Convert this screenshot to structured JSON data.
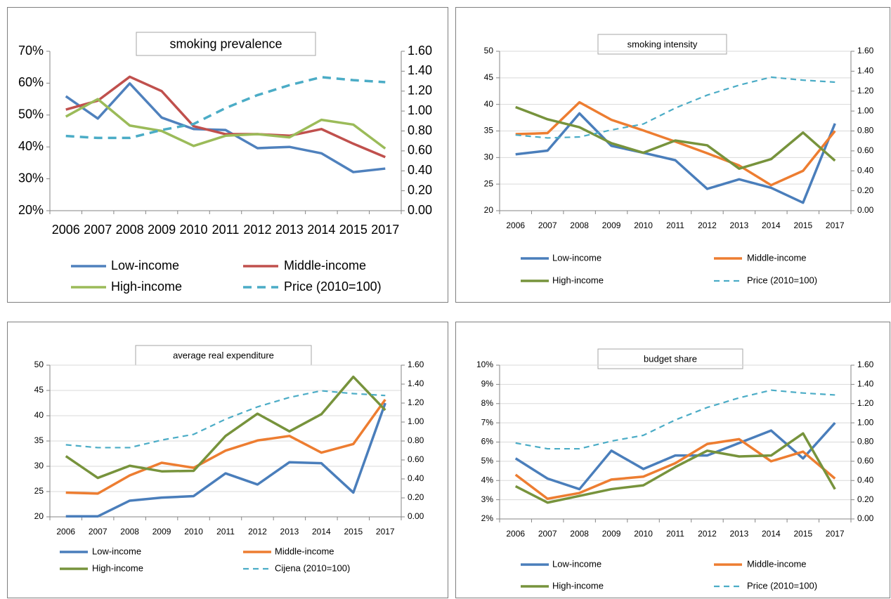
{
  "chart_data": [
    {
      "type": "line",
      "title": "smoking prevalence",
      "grid": false,
      "categories": [
        "2006",
        "2007",
        "2008",
        "2009",
        "2010",
        "2011",
        "2012",
        "2013",
        "2014",
        "2015",
        "2017"
      ],
      "ylim": [
        20,
        70
      ],
      "yticks": [
        {
          "value": 20,
          "label": "20%"
        },
        {
          "value": 30,
          "label": "30%"
        },
        {
          "value": 40,
          "label": "40%"
        },
        {
          "value": 50,
          "label": "50%"
        },
        {
          "value": 60,
          "label": "60%"
        },
        {
          "value": 70,
          "label": "70%"
        }
      ],
      "y2lim": [
        0,
        1.6
      ],
      "y2ticks": [
        {
          "value": 0,
          "label": "0.00"
        },
        {
          "value": 0.2,
          "label": "0.20"
        },
        {
          "value": 0.4,
          "label": "0.40"
        },
        {
          "value": 0.6,
          "label": "0.60"
        },
        {
          "value": 0.8,
          "label": "0.80"
        },
        {
          "value": 1,
          "label": "1.00"
        },
        {
          "value": 1.2,
          "label": "1.20"
        },
        {
          "value": 1.4,
          "label": "1.40"
        },
        {
          "value": 1.6,
          "label": "1.60"
        }
      ],
      "series": [
        {
          "name": "Low-income",
          "color": "#4f81bd",
          "values": [
            55.9,
            48.9,
            59.9,
            49.2,
            45.6,
            45.3,
            39.6,
            40,
            38,
            32.1,
            33.2
          ]
        },
        {
          "name": "Middle-income",
          "color": "#c0504d",
          "values": [
            51.7,
            54.5,
            62,
            57.5,
            46.5,
            44,
            44,
            43.5,
            45.6,
            41,
            36.8
          ]
        },
        {
          "name": "High-income",
          "color": "#9bbb59",
          "values": [
            49.5,
            55,
            46.7,
            45,
            40.3,
            43.5,
            44,
            43,
            48.5,
            47,
            39.5
          ]
        },
        {
          "name": "Price (2010=100)",
          "color": "#4bacc6",
          "axis": "y2",
          "line_style": "dashed",
          "values": [
            0.75,
            0.73,
            0.73,
            0.81,
            0.87,
            1.03,
            1.16,
            1.26,
            1.34,
            1.31,
            1.29
          ]
        }
      ]
    },
    {
      "type": "line",
      "title": "smoking intensity",
      "grid": true,
      "categories": [
        "2006",
        "2007",
        "2008",
        "2009",
        "2010",
        "2011",
        "2012",
        "2013",
        "2014",
        "2015",
        "2017"
      ],
      "ylim": [
        20,
        50
      ],
      "yticks": [
        20,
        25,
        30,
        35,
        40,
        45,
        50
      ],
      "y2lim": [
        0,
        1.6
      ],
      "y2ticks": [
        {
          "value": 0,
          "label": "0.00"
        },
        {
          "value": 0.2,
          "label": "0.20"
        },
        {
          "value": 0.4,
          "label": "0.40"
        },
        {
          "value": 0.6,
          "label": "0.60"
        },
        {
          "value": 0.8,
          "label": "0.80"
        },
        {
          "value": 1,
          "label": "1.00"
        },
        {
          "value": 1.2,
          "label": "1.20"
        },
        {
          "value": 1.4,
          "label": "1.40"
        },
        {
          "value": 1.6,
          "label": "1.60"
        }
      ],
      "series": [
        {
          "name": "Low-income",
          "color": "#4a7ebb",
          "values": [
            30.6,
            31.3,
            38.3,
            32.2,
            30.9,
            29.5,
            24.1,
            25.9,
            24.3,
            21.5,
            36.4
          ]
        },
        {
          "name": "Middle-income",
          "color": "#ed7d31",
          "values": [
            34.4,
            34.6,
            40.4,
            37.1,
            35.1,
            33,
            30.8,
            28.5,
            24.8,
            27.5,
            35
          ]
        },
        {
          "name": "High-income",
          "color": "#77933c",
          "values": [
            39.5,
            37.2,
            35.7,
            32.7,
            30.9,
            33.2,
            32.3,
            27.9,
            29.7,
            34.7,
            29.4
          ]
        },
        {
          "name": "Price (2010=100)",
          "color": "#4bacc6",
          "axis": "y2",
          "line_style": "dashed",
          "values": [
            0.76,
            0.73,
            0.74,
            0.81,
            0.87,
            1.03,
            1.16,
            1.26,
            1.34,
            1.31,
            1.29
          ]
        }
      ]
    },
    {
      "type": "line",
      "title": "average real expenditure",
      "grid": true,
      "categories": [
        "2006",
        "2007",
        "2008",
        "2009",
        "2010",
        "2011",
        "2012",
        "2013",
        "2014",
        "2015",
        "2017"
      ],
      "ylim": [
        20,
        50
      ],
      "yticks": [
        20,
        25,
        30,
        35,
        40,
        45,
        50
      ],
      "y2lim": [
        0,
        1.6
      ],
      "y2ticks": [
        {
          "value": 0,
          "label": "0.00"
        },
        {
          "value": 0.2,
          "label": "0.20"
        },
        {
          "value": 0.4,
          "label": "0.40"
        },
        {
          "value": 0.6,
          "label": "0.60"
        },
        {
          "value": 0.8,
          "label": "0.80"
        },
        {
          "value": 1,
          "label": "1.00"
        },
        {
          "value": 1.2,
          "label": "1.20"
        },
        {
          "value": 1.4,
          "label": "1.40"
        },
        {
          "value": 1.6,
          "label": "1.60"
        }
      ],
      "series": [
        {
          "name": "Low-income",
          "color": "#4a7ebb",
          "values": [
            20.1,
            20.1,
            23.2,
            23.8,
            24.1,
            28.6,
            26.4,
            30.8,
            30.6,
            24.8,
            42.5
          ]
        },
        {
          "name": "Middle-income",
          "color": "#ed7d31",
          "values": [
            24.8,
            24.6,
            28.2,
            30.7,
            29.7,
            33.1,
            35.1,
            36,
            32.7,
            34.4,
            43.2
          ]
        },
        {
          "name": "High-income",
          "color": "#77933c",
          "values": [
            32,
            27.7,
            30.1,
            29,
            29.1,
            36,
            40.4,
            36.9,
            40.3,
            47.7,
            41.1
          ]
        },
        {
          "name": "Cijena (2010=100)",
          "color": "#4bacc6",
          "axis": "y2",
          "line_style": "dashed",
          "values": [
            0.76,
            0.73,
            0.73,
            0.81,
            0.87,
            1.03,
            1.16,
            1.26,
            1.33,
            1.3,
            1.28
          ]
        }
      ]
    },
    {
      "type": "line",
      "title": "budget share",
      "grid": true,
      "categories": [
        "2006",
        "2007",
        "2008",
        "2009",
        "2010",
        "2011",
        "2012",
        "2013",
        "2014",
        "2015",
        "2017"
      ],
      "ylim": [
        2,
        10
      ],
      "yticks": [
        {
          "value": 2,
          "label": "2%"
        },
        {
          "value": 3,
          "label": "3%"
        },
        {
          "value": 4,
          "label": "4%"
        },
        {
          "value": 5,
          "label": "5%"
        },
        {
          "value": 6,
          "label": "6%"
        },
        {
          "value": 7,
          "label": "7%"
        },
        {
          "value": 8,
          "label": "8%"
        },
        {
          "value": 9,
          "label": "9%"
        },
        {
          "value": 10,
          "label": "10%"
        }
      ],
      "y2lim": [
        0,
        1.6
      ],
      "y2ticks": [
        {
          "value": 0,
          "label": "0.00"
        },
        {
          "value": 0.2,
          "label": "0.20"
        },
        {
          "value": 0.4,
          "label": "0.40"
        },
        {
          "value": 0.6,
          "label": "0.60"
        },
        {
          "value": 0.8,
          "label": "0.80"
        },
        {
          "value": 1,
          "label": "1.00"
        },
        {
          "value": 1.2,
          "label": "1.20"
        },
        {
          "value": 1.4,
          "label": "1.40"
        },
        {
          "value": 1.6,
          "label": "1.60"
        }
      ],
      "series": [
        {
          "name": "Low-income",
          "color": "#4a7ebb",
          "values": [
            5.15,
            4.1,
            3.55,
            5.55,
            4.6,
            5.3,
            5.3,
            5.95,
            6.6,
            5.15,
            7
          ]
        },
        {
          "name": "Middle-income",
          "color": "#ed7d31",
          "values": [
            4.3,
            3.05,
            3.35,
            4.05,
            4.2,
            4.9,
            5.9,
            6.15,
            5,
            5.5,
            4.1
          ]
        },
        {
          "name": "High-income",
          "color": "#77933c",
          "values": [
            3.7,
            2.85,
            3.2,
            3.55,
            3.75,
            4.7,
            5.55,
            5.25,
            5.3,
            6.45,
            3.55
          ]
        },
        {
          "name": "Price (2010=100)",
          "color": "#4bacc6",
          "axis": "y2",
          "line_style": "dashed",
          "values": [
            0.79,
            0.73,
            0.73,
            0.81,
            0.87,
            1.03,
            1.16,
            1.26,
            1.34,
            1.31,
            1.29
          ]
        }
      ]
    }
  ]
}
